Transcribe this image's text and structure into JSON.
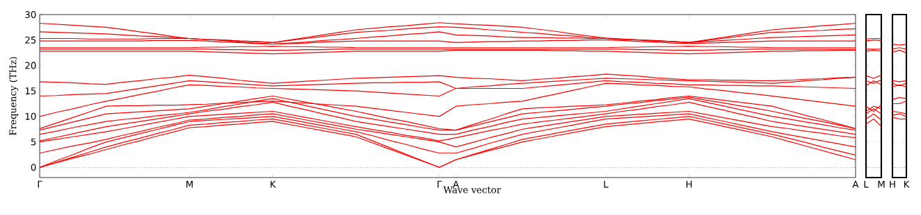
{
  "chart_data": [
    {
      "type": "line",
      "xlabel": "Wave vector",
      "ylabel": "Frequency (THz)",
      "ylim": [
        -2,
        30
      ],
      "yticks": [
        0,
        5,
        10,
        15,
        20,
        25,
        30
      ],
      "categories": [
        "Γ",
        null,
        null,
        null,
        null,
        null,
        null,
        null,
        null,
        "M",
        null,
        null,
        null,
        null,
        "K",
        null,
        null,
        null,
        null,
        null,
        null,
        null,
        null,
        null,
        "Γ",
        "A",
        null,
        null,
        null,
        null,
        null,
        null,
        null,
        null,
        "L",
        null,
        null,
        null,
        null,
        "H",
        null,
        null,
        null,
        null,
        null,
        null,
        null,
        null,
        null,
        "A"
      ],
      "ref_lines": [
        {
          "axis": "y",
          "value": 0,
          "color": "#0000ff",
          "line_style": "dotted"
        }
      ],
      "series": [
        {
          "color": "#ff0000",
          "values": [
            0,
            0.9,
            1.8,
            2.6,
            3.5,
            4.4,
            5.2,
            6.1,
            6.9,
            7.8,
            8.0,
            8.3,
            8.5,
            8.8,
            9.0,
            8.4,
            7.8,
            7.2,
            6.6,
            6.0,
            4.8,
            3.6,
            2.4,
            1.2,
            0,
            1.5,
            2.4,
            3.3,
            4.1,
            5.0,
            5.6,
            6.2,
            6.8,
            7.4,
            8.0,
            8.3,
            8.6,
            8.9,
            9.2,
            9.5,
            8.8,
            8.1,
            7.4,
            6.7,
            6.0,
            5.1,
            4.2,
            3.3,
            2.4,
            1.5
          ]
        },
        {
          "color": "#fe0000",
          "values": [
            0,
            1,
            2,
            3,
            4,
            4.9,
            5.7,
            6.6,
            7.4,
            8.3,
            8.5,
            8.8,
            9.0,
            9.3,
            9.5,
            8.9,
            8.3,
            7.7,
            7.1,
            6.5,
            5.2,
            3.9,
            2.6,
            1.3,
            0,
            1.5,
            2.5,
            3.5,
            4.5,
            5.5,
            6.1,
            6.7,
            7.3,
            7.9,
            8.5,
            8.8,
            9.1,
            9.4,
            9.7,
            10,
            9.3,
            8.6,
            7.9,
            7.2,
            6.5,
            5.7,
            4.9,
            4.0,
            3.2,
            2.4
          ]
        },
        {
          "color": "#fd0000",
          "values": [
            0,
            1.3,
            2.5,
            3.8,
            5,
            5.8,
            6.6,
            7.4,
            8.2,
            9.0,
            9.2,
            9.4,
            9.6,
            9.8,
            10,
            9.4,
            8.8,
            8.2,
            7.6,
            7,
            6.2,
            5.3,
            4.5,
            3.6,
            2.8,
            2.8,
            3.7,
            4.7,
            5.6,
            6.5,
            7.1,
            7.7,
            8.3,
            8.9,
            9.5,
            9.7,
            9.9,
            10.1,
            10.3,
            10.5,
            9.8,
            9.1,
            8.4,
            7.7,
            7,
            6.4,
            5.8,
            5.2,
            4.6,
            4
          ]
        },
        {
          "color": "#fc0000",
          "values": [
            2.8,
            3.5,
            4.2,
            4.8,
            5.5,
            6.3,
            7.0,
            7.8,
            8.5,
            9.3,
            9.5,
            9.8,
            10.0,
            10.3,
            10.5,
            9.9,
            9.3,
            8.7,
            8.1,
            7.5,
            7.0,
            6.5,
            6.0,
            5.5,
            5.0,
            4,
            4.9,
            5.8,
            6.6,
            7.5,
            8.0,
            8.5,
            9.0,
            9.5,
            10,
            10.2,
            10.4,
            10.6,
            10.8,
            11,
            10.4,
            9.8,
            9.2,
            8.6,
            8,
            7.6,
            7.1,
            6.7,
            6.2,
            5.8
          ]
        },
        {
          "color": "#fb0000",
          "values": [
            5.0,
            5.5,
            6.0,
            6.5,
            7,
            7.6,
            8.2,
            8.8,
            9.4,
            10,
            10.2,
            10.4,
            10.6,
            10.8,
            11,
            10.4,
            9.8,
            9.2,
            8.6,
            8,
            7.4,
            6.9,
            6.3,
            5.8,
            5.2,
            5.8,
            6.5,
            7.2,
            7.8,
            8.5,
            8.9,
            9.3,
            9.7,
            10.1,
            10.5,
            11.0,
            11.4,
            11.9,
            12.3,
            12.8,
            12.0,
            11.3,
            10.5,
            9.8,
            9,
            8.5,
            8.0,
            7.5,
            7.0,
            6.5
          ]
        },
        {
          "color": "#fa0000",
          "values": [
            5.2,
            5.9,
            6.6,
            7.3,
            8,
            8.5,
            9.0,
            9.5,
            10.0,
            10.5,
            11.0,
            11.4,
            11.9,
            12.3,
            12.8,
            12.0,
            11.3,
            10.5,
            9.8,
            9,
            8.5,
            8.0,
            7.5,
            7.0,
            6.5,
            6.5,
            7.3,
            8.0,
            8.8,
            9.5,
            9.8,
            10.1,
            10.4,
            10.7,
            11,
            11.5,
            12.0,
            12.5,
            13.0,
            13.5,
            12.8,
            12.1,
            11.4,
            10.7,
            10,
            9.5,
            8.9,
            8.4,
            7.8,
            7.3
          ]
        },
        {
          "color": "#f90000",
          "values": [
            6.5,
            7.1,
            7.8,
            8.4,
            9,
            9.4,
            9.7,
            10.1,
            10.4,
            10.8,
            11.3,
            11.9,
            12.4,
            13.0,
            13.5,
            12.8,
            12.1,
            11.4,
            10.7,
            10,
            9.5,
            8.9,
            8.4,
            7.8,
            7.3,
            7.3,
            8.1,
            8.9,
            9.7,
            10.5,
            10.8,
            11.1,
            11.4,
            11.7,
            12,
            12.4,
            12.7,
            13.1,
            13.4,
            13.8,
            13.2,
            12.7,
            12.1,
            11.6,
            11,
            10.3,
            9.6,
            9.0,
            8.3,
            7.6
          ]
        },
        {
          "color": "#f80000",
          "values": [
            7.3,
            8.1,
            8.9,
            9.7,
            10.5,
            10.7,
            10.9,
            11.1,
            11.3,
            11.5,
            12.0,
            12.5,
            13.0,
            13.5,
            14,
            13.4,
            12.8,
            12.2,
            11.6,
            11,
            10.3,
            9.6,
            9.0,
            8.3,
            7.6,
            7.3,
            8.4,
            9.4,
            10.5,
            11.5,
            11.7,
            11.8,
            12.0,
            12.1,
            12.3,
            12.6,
            13.0,
            13.3,
            13.7,
            14,
            13.6,
            13.2,
            12.8,
            12.4,
            12,
            11.1,
            10.2,
            9.4,
            8.5,
            7.6
          ]
        },
        {
          "color": "#f70000",
          "values": [
            7.6,
            8.7,
            9.8,
            10.9,
            12,
            12.1,
            12.1,
            12.2,
            12.2,
            12.3,
            12.4,
            12.6,
            12.7,
            12.9,
            13,
            12.8,
            12.6,
            12.4,
            12.2,
            12,
            11.6,
            11.2,
            10.8,
            10.4,
            10,
            12,
            12.3,
            12.5,
            12.8,
            13,
            13.7,
            14.4,
            15.1,
            15.8,
            16.5,
            16.4,
            16.2,
            16.1,
            15.9,
            15.8,
            15.4,
            15.1,
            14.7,
            14.4,
            14,
            13.6,
            13.2,
            12.8,
            12.4,
            12
          ]
        },
        {
          "color": "#f60000",
          "values": [
            10,
            10.8,
            11.5,
            12.3,
            13,
            13.6,
            14.3,
            14.9,
            15.6,
            16.2,
            16.1,
            15.9,
            15.8,
            15.6,
            15.5,
            15.4,
            15.3,
            15.2,
            15.1,
            15,
            14.8,
            14.6,
            14.4,
            14.2,
            14,
            15.5,
            15.5,
            15.5,
            15.5,
            15.5,
            15.8,
            16.1,
            16.4,
            16.7,
            17,
            16.8,
            16.7,
            16.5,
            16.4,
            16.2,
            16.2,
            16.1,
            16.1,
            16.0,
            16,
            15.9,
            15.8,
            15.7,
            15.6,
            15.5
          ]
        },
        {
          "color": "#f50000",
          "values": [
            14,
            14.1,
            14.3,
            14.4,
            14.5,
            15.0,
            15.5,
            16.0,
            16.5,
            17,
            16.8,
            16.6,
            16.4,
            16.2,
            16,
            16.1,
            16.2,
            16.3,
            16.4,
            16.5,
            16.6,
            16.6,
            16.7,
            16.7,
            16.8,
            15.5,
            15.8,
            16.0,
            16.3,
            16.5,
            16.7,
            16.9,
            17.1,
            17.3,
            17.5,
            17.4,
            17.3,
            17.2,
            17.1,
            17,
            16.9,
            16.8,
            16.7,
            16.6,
            16.5,
            16.7,
            17.0,
            17.2,
            17.5,
            17.7
          ]
        },
        {
          "color": "#f40000",
          "values": [
            16.8,
            16.7,
            16.6,
            16.4,
            16.3,
            16.7,
            17.0,
            17.4,
            17.7,
            18.1,
            17.8,
            17.5,
            17.1,
            16.8,
            16.5,
            16.7,
            16.9,
            17.1,
            17.3,
            17.5,
            17.6,
            17.7,
            17.8,
            17.9,
            18,
            17.7,
            17.5,
            17.4,
            17.2,
            17,
            17.3,
            17.5,
            17.8,
            18.0,
            18.3,
            18.1,
            17.9,
            17.6,
            17.4,
            17.2,
            17.2,
            17.1,
            17.1,
            17.0,
            17,
            17.1,
            17.3,
            17.4,
            17.6,
            17.7
          ]
        },
        {
          "color": "#f30000",
          "values": [
            22.8,
            22.8,
            22.8,
            22.8,
            22.8,
            22.8,
            22.8,
            22.8,
            22.8,
            22.8,
            22.7,
            22.6,
            22.5,
            22.4,
            22.3,
            22.4,
            22.5,
            22.6,
            22.7,
            22.8,
            22.8,
            22.8,
            22.8,
            22.8,
            22.8,
            23,
            23,
            23,
            23,
            23,
            23.0,
            22.9,
            22.9,
            22.8,
            22.8,
            22.7,
            22.6,
            22.5,
            22.4,
            22.3,
            22.4,
            22.5,
            22.6,
            22.7,
            22.8,
            22.8,
            22.9,
            22.9,
            23.0,
            23
          ]
        },
        {
          "color": "#f20000",
          "values": [
            23.2,
            23.2,
            23.2,
            23.2,
            23.2,
            23.2,
            23.2,
            23.2,
            23.2,
            23.2,
            23.2,
            23.1,
            23.1,
            23.0,
            23.0,
            23.0,
            23.1,
            23.1,
            23.2,
            23.2,
            23.2,
            23.2,
            23.2,
            23.2,
            23.2,
            23.2,
            23.2,
            23.2,
            23.2,
            23.2,
            23.2,
            23.2,
            23.2,
            23.2,
            23.2,
            23.2,
            23.1,
            23.1,
            23.0,
            23.0,
            23.0,
            23.1,
            23.1,
            23.2,
            23.2,
            23.2,
            23.2,
            23.2,
            23.2,
            23.2
          ]
        },
        {
          "color": "#f10000",
          "values": [
            23.5,
            23.5,
            23.5,
            23.5,
            23.5,
            23.5,
            23.5,
            23.5,
            23.5,
            23.5,
            23.6,
            23.6,
            23.7,
            23.7,
            23.8,
            23.7,
            23.7,
            23.6,
            23.6,
            23.5,
            23.5,
            23.5,
            23.5,
            23.5,
            23.5,
            23.5,
            23.5,
            23.5,
            23.5,
            23.5,
            23.5,
            23.5,
            23.5,
            23.5,
            23.5,
            23.6,
            23.6,
            23.7,
            23.7,
            23.8,
            23.7,
            23.7,
            23.6,
            23.6,
            23.5,
            23.5,
            23.5,
            23.5,
            23.5,
            23.5
          ]
        },
        {
          "color": "#f00000",
          "values": [
            24.8,
            24.8,
            24.8,
            24.8,
            24.8,
            24.8,
            24.8,
            24.9,
            24.9,
            24.9,
            24.8,
            24.6,
            24.5,
            24.3,
            24.2,
            24.3,
            24.4,
            24.6,
            24.7,
            24.8,
            24.8,
            24.8,
            24.8,
            24.8,
            24.8,
            24.5,
            24.6,
            24.7,
            24.7,
            24.8,
            24.8,
            24.9,
            24.9,
            25.0,
            25,
            24.9,
            24.7,
            24.6,
            24.4,
            24.3,
            24.4,
            24.5,
            24.6,
            24.7,
            24.8,
            24.8,
            24.8,
            24.8,
            24.8,
            24.8
          ]
        },
        {
          "color": "#ef0000",
          "values": [
            25.3,
            25.3,
            25.3,
            25.2,
            25.2,
            25.2,
            25.2,
            25.3,
            25.3,
            25.3,
            25.1,
            24.9,
            24.6,
            24.4,
            24.2,
            24.4,
            24.6,
            24.9,
            25.1,
            25.3,
            25.6,
            25.8,
            26.1,
            26.3,
            26.6,
            26,
            25.9,
            25.8,
            25.6,
            25.5,
            25.5,
            25.4,
            25.4,
            25.3,
            25.3,
            25.1,
            25.0,
            24.8,
            24.7,
            24.5,
            24.7,
            24.9,
            25.1,
            25.3,
            25.5,
            25.6,
            25.7,
            25.8,
            25.9,
            26
          ]
        },
        {
          "color": "#ee0000",
          "values": [
            26.6,
            26.5,
            26.4,
            26.3,
            26.2,
            26.0,
            25.8,
            25.7,
            25.5,
            25.3,
            25.1,
            25.0,
            24.8,
            24.7,
            24.5,
            24.9,
            25.3,
            25.7,
            26.1,
            26.5,
            26.7,
            26.9,
            27.2,
            27.4,
            27.6,
            27.5,
            27.3,
            27.0,
            26.8,
            26.5,
            26.3,
            26.0,
            25.8,
            25.5,
            25.3,
            25.1,
            25.0,
            24.8,
            24.7,
            24.5,
            24.9,
            25.3,
            25.7,
            26.1,
            26.5,
            26.6,
            26.8,
            26.9,
            27.1,
            27.2
          ]
        },
        {
          "color": "#ed0000",
          "values": [
            28.3,
            28.1,
            27.9,
            27.7,
            27.5,
            27.1,
            26.6,
            26.2,
            25.7,
            25.3,
            25.1,
            25.0,
            24.8,
            24.7,
            24.5,
            25.0,
            25.5,
            26.0,
            26.5,
            27,
            27.3,
            27.6,
            27.8,
            28.1,
            28.4,
            28.2,
            28.0,
            27.9,
            27.7,
            27.5,
            27.1,
            26.7,
            26.2,
            25.8,
            25.4,
            25.2,
            25.0,
            24.9,
            24.7,
            24.5,
            25.0,
            25.5,
            26.0,
            26.5,
            27,
            27.3,
            27.5,
            27.8,
            28.0,
            28.3
          ]
        }
      ]
    },
    {
      "type": "line",
      "ylim": [
        -2,
        30
      ],
      "tick_labels": "x",
      "yticks": [
        0,
        5,
        10,
        15,
        20,
        25,
        30
      ],
      "categories": [
        "L",
        null,
        "M"
      ],
      "ref_lines": [
        {
          "axis": "y",
          "value": 0,
          "color": "#0000ff",
          "line_style": "dotted"
        }
      ],
      "series": [
        {
          "color": "#ff0000",
          "values": [
            8.5,
            9.5,
            8.0
          ]
        },
        {
          "color": "#fe0000",
          "values": [
            9.5,
            10.5,
            9.3
          ]
        },
        {
          "color": "#fd0000",
          "values": [
            10.5,
            11.5,
            10.5
          ]
        },
        {
          "color": "#fc0000",
          "values": [
            11,
            12,
            11.5
          ]
        },
        {
          "color": "#fb0000",
          "values": [
            12,
            11,
            12.3
          ]
        },
        {
          "color": "#fa0000",
          "values": [
            16,
            17,
            16.2
          ]
        },
        {
          "color": "#f90000",
          "values": [
            17,
            16.5,
            17.2
          ]
        },
        {
          "color": "#f80000",
          "values": [
            18,
            17.5,
            18.1
          ]
        },
        {
          "color": "#f70000",
          "values": [
            22.8,
            23,
            22.8
          ]
        },
        {
          "color": "#f60000",
          "values": [
            23.2,
            23.2,
            23.2
          ]
        },
        {
          "color": "#f50000",
          "values": [
            24.8,
            25,
            24.9
          ]
        },
        {
          "color": "#f40000",
          "values": [
            25.2,
            25.3,
            25.3
          ]
        }
      ]
    },
    {
      "type": "line",
      "ylim": [
        -2,
        30
      ],
      "tick_labels": "x",
      "yticks": [
        0,
        5,
        10,
        15,
        20,
        25,
        30
      ],
      "categories": [
        "H",
        null,
        "K"
      ],
      "ref_lines": [
        {
          "axis": "y",
          "value": 0,
          "color": "#0000ff",
          "line_style": "dotted"
        }
      ],
      "series": [
        {
          "color": "#ff0000",
          "values": [
            9.8,
            9.5,
            9.5
          ]
        },
        {
          "color": "#fe0000",
          "values": [
            10.2,
            10.5,
            10
          ]
        },
        {
          "color": "#fd0000",
          "values": [
            11,
            10.8,
            10.5
          ]
        },
        {
          "color": "#fc0000",
          "values": [
            12.5,
            12.5,
            13
          ]
        },
        {
          "color": "#fb0000",
          "values": [
            13.3,
            13.7,
            13.5
          ]
        },
        {
          "color": "#fa0000",
          "values": [
            15.8,
            16.2,
            15.8
          ]
        },
        {
          "color": "#f90000",
          "values": [
            16.5,
            16,
            16.5
          ]
        },
        {
          "color": "#f80000",
          "values": [
            17,
            16.8,
            17
          ]
        },
        {
          "color": "#f70000",
          "values": [
            22.6,
            23,
            22.5
          ]
        },
        {
          "color": "#f60000",
          "values": [
            23.2,
            23.5,
            23.2
          ]
        },
        {
          "color": "#f50000",
          "values": [
            24.2,
            24,
            24.2
          ]
        }
      ]
    }
  ]
}
